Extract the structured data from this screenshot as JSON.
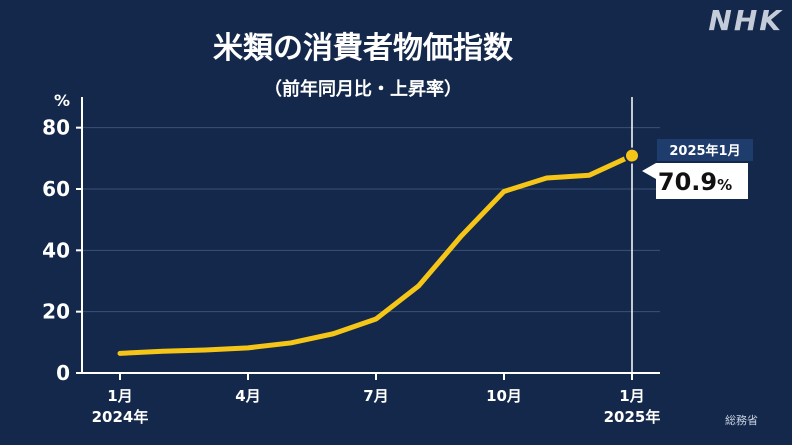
{
  "branding": {
    "logo_text": "NHK"
  },
  "source": "総務省",
  "chart_data": {
    "type": "line",
    "title": "米類の消費者物価指数",
    "subtitle": "（前年同月比・上昇率）",
    "ylabel": "%",
    "ylim": [
      0,
      90
    ],
    "yticks": [
      0,
      20,
      40,
      60,
      80
    ],
    "grid": true,
    "x": [
      "2024-01",
      "2024-02",
      "2024-03",
      "2024-04",
      "2024-05",
      "2024-06",
      "2024-07",
      "2024-08",
      "2024-09",
      "2024-10",
      "2024-11",
      "2024-12",
      "2025-01"
    ],
    "xtick_labels": [
      {
        "x": "2024-01",
        "month": "1月",
        "year": "2024年"
      },
      {
        "x": "2024-04",
        "month": "4月",
        "year": ""
      },
      {
        "x": "2024-07",
        "month": "7月",
        "year": ""
      },
      {
        "x": "2024-10",
        "month": "10月",
        "year": ""
      },
      {
        "x": "2025-01",
        "month": "1月",
        "year": "2025年"
      }
    ],
    "series": [
      {
        "values": [
          6.4,
          7.1,
          7.5,
          8.2,
          9.8,
          12.8,
          17.6,
          28.4,
          44.7,
          59.2,
          63.6,
          64.5,
          70.9
        ]
      }
    ],
    "line_color": "#f5c518",
    "annotation": {
      "x": "2025-01",
      "label": "2025年1月",
      "value": "70.9",
      "unit": "%"
    }
  }
}
